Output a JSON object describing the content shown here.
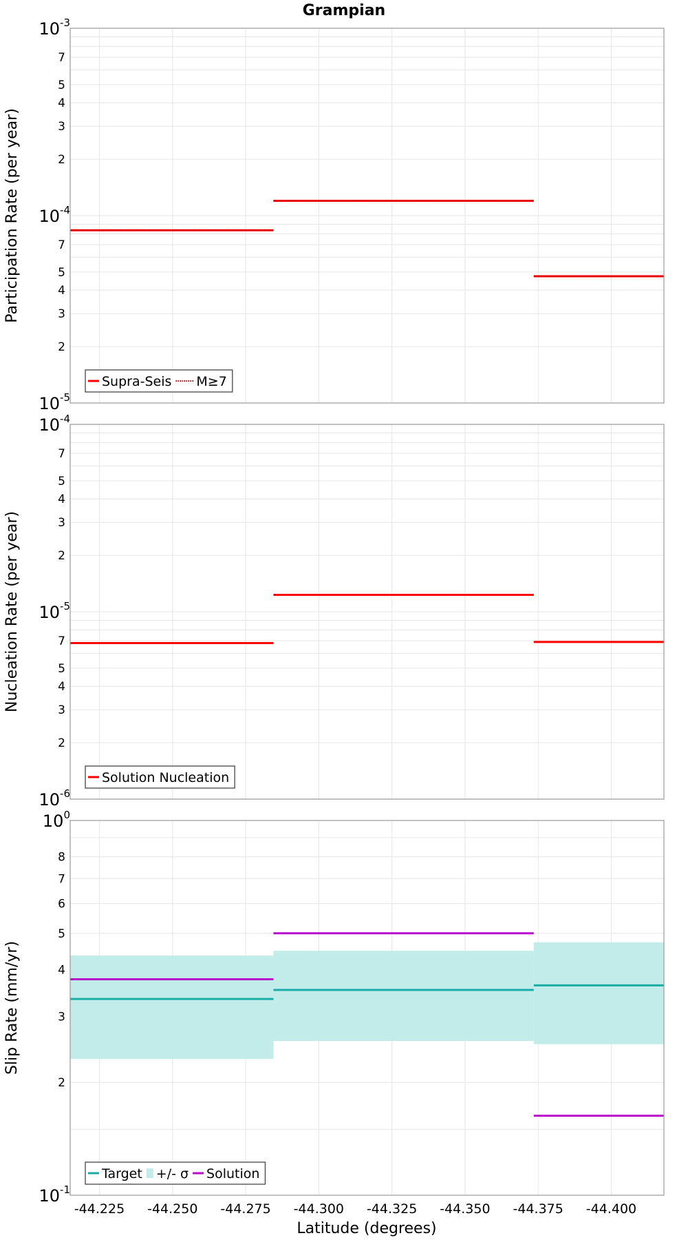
{
  "figure": {
    "title": "Grampian",
    "xlabel": "Latitude (degrees)"
  },
  "chart_data": [
    {
      "type": "line",
      "step": true,
      "ylabel": "Participation Rate (per year)",
      "yscale": "log",
      "ylim": [
        1e-05,
        0.001
      ],
      "xlim": [
        -44.215,
        -44.418
      ],
      "x_ticks": [
        -44.225,
        -44.25,
        -44.275,
        -44.3,
        -44.325,
        -44.35,
        -44.375,
        -44.4
      ],
      "major_ticks": [
        {
          "value": 0.001,
          "base": "10",
          "exp": "-3"
        },
        {
          "value": 0.0001,
          "base": "10",
          "exp": "-4"
        },
        {
          "value": 1e-05,
          "base": "10",
          "exp": "-5"
        }
      ],
      "minor_ticks": [
        {
          "value": 0.0007,
          "label": "7"
        },
        {
          "value": 0.0005,
          "label": "5"
        },
        {
          "value": 0.0004,
          "label": "4"
        },
        {
          "value": 0.0003,
          "label": "3"
        },
        {
          "value": 0.0002,
          "label": "2"
        },
        {
          "value": 7e-05,
          "label": "7"
        },
        {
          "value": 5e-05,
          "label": "5"
        },
        {
          "value": 4e-05,
          "label": "4"
        },
        {
          "value": 3e-05,
          "label": "3"
        },
        {
          "value": 2e-05,
          "label": "2"
        }
      ],
      "grid_values": [
        0.0009,
        0.0008,
        0.0006,
        9e-05,
        8e-05,
        6e-05
      ],
      "grid": true,
      "legend_position": "bottom-left",
      "series": [
        {
          "name": "Supra-Seis",
          "color": "#ff0000",
          "style": "solid",
          "segments": [
            {
              "x0": -44.215,
              "x1": -44.2845,
              "y": 8.35e-05
            },
            {
              "x0": -44.2845,
              "x1": -44.3735,
              "y": 0.00012
            },
            {
              "x0": -44.3735,
              "x1": -44.418,
              "y": 4.75e-05
            }
          ]
        },
        {
          "name": "M≥7",
          "color": "#ff0000",
          "style": "dotted",
          "segments": [
            {
              "x0": -44.215,
              "x1": -44.2845,
              "y": 8.35e-05
            },
            {
              "x0": -44.2845,
              "x1": -44.3735,
              "y": 0.00012
            },
            {
              "x0": -44.3735,
              "x1": -44.418,
              "y": 4.75e-05
            }
          ]
        }
      ]
    },
    {
      "type": "line",
      "step": true,
      "ylabel": "Nucleation Rate (per year)",
      "yscale": "log",
      "ylim": [
        1e-06,
        0.0001
      ],
      "xlim": [
        -44.215,
        -44.418
      ],
      "x_ticks": [
        -44.225,
        -44.25,
        -44.275,
        -44.3,
        -44.325,
        -44.35,
        -44.375,
        -44.4
      ],
      "major_ticks": [
        {
          "value": 0.0001,
          "base": "10",
          "exp": "-4"
        },
        {
          "value": 1e-05,
          "base": "10",
          "exp": "-5"
        },
        {
          "value": 1e-06,
          "base": "10",
          "exp": "-6"
        }
      ],
      "minor_ticks": [
        {
          "value": 7e-05,
          "label": "7"
        },
        {
          "value": 5e-05,
          "label": "5"
        },
        {
          "value": 4e-05,
          "label": "4"
        },
        {
          "value": 3e-05,
          "label": "3"
        },
        {
          "value": 2e-05,
          "label": "2"
        },
        {
          "value": 7e-06,
          "label": "7"
        },
        {
          "value": 5e-06,
          "label": "5"
        },
        {
          "value": 4e-06,
          "label": "4"
        },
        {
          "value": 3e-06,
          "label": "3"
        },
        {
          "value": 2e-06,
          "label": "2"
        }
      ],
      "grid_values": [
        9e-05,
        8e-05,
        6e-05,
        9e-06,
        8e-06,
        6e-06
      ],
      "grid": true,
      "legend_position": "bottom-left",
      "series": [
        {
          "name": "Solution Nucleation",
          "color": "#ff0000",
          "style": "solid",
          "segments": [
            {
              "x0": -44.215,
              "x1": -44.2845,
              "y": 6.8e-06
            },
            {
              "x0": -44.2845,
              "x1": -44.3735,
              "y": 1.23e-05
            },
            {
              "x0": -44.3735,
              "x1": -44.418,
              "y": 6.9e-06
            }
          ]
        }
      ]
    },
    {
      "type": "line",
      "step": true,
      "ylabel": "Slip Rate (mm/yr)",
      "yscale": "log",
      "ylim": [
        0.1,
        1
      ],
      "xlim": [
        -44.215,
        -44.418
      ],
      "x_ticks": [
        -44.225,
        -44.25,
        -44.275,
        -44.3,
        -44.325,
        -44.35,
        -44.375,
        -44.4
      ],
      "major_ticks": [
        {
          "value": 1,
          "base": "10",
          "exp": "0"
        },
        {
          "value": 0.1,
          "base": "10",
          "exp": "-1"
        }
      ],
      "minor_ticks": [
        {
          "value": 0.8,
          "label": "8"
        },
        {
          "value": 0.7,
          "label": "7"
        },
        {
          "value": 0.6,
          "label": "6"
        },
        {
          "value": 0.5,
          "label": "5"
        },
        {
          "value": 0.4,
          "label": "4"
        },
        {
          "value": 0.3,
          "label": "3"
        },
        {
          "value": 0.2,
          "label": "2"
        }
      ],
      "grid_values": [
        0.9,
        0.15
      ],
      "grid": true,
      "legend_position": "bottom-left",
      "series": [
        {
          "name": "+/- σ",
          "color": "#c2ece9",
          "style": "band",
          "segments": [
            {
              "x0": -44.215,
              "x1": -44.2845,
              "y_low": 0.231,
              "y_high": 0.436
            },
            {
              "x0": -44.2845,
              "x1": -44.3735,
              "y_low": 0.258,
              "y_high": 0.449
            },
            {
              "x0": -44.3735,
              "x1": -44.418,
              "y_low": 0.253,
              "y_high": 0.473
            }
          ]
        },
        {
          "name": "Target",
          "color": "#1aaca6",
          "style": "solid",
          "segments": [
            {
              "x0": -44.215,
              "x1": -44.2845,
              "y": 0.334
            },
            {
              "x0": -44.2845,
              "x1": -44.3735,
              "y": 0.353
            },
            {
              "x0": -44.3735,
              "x1": -44.418,
              "y": 0.363
            }
          ]
        },
        {
          "name": "Solution",
          "color": "#b80bcc",
          "style": "solid",
          "segments": [
            {
              "x0": -44.215,
              "x1": -44.2845,
              "y": 0.377
            },
            {
              "x0": -44.2845,
              "x1": -44.3735,
              "y": 0.5
            },
            {
              "x0": -44.3735,
              "x1": -44.418,
              "y": 0.163
            }
          ]
        }
      ],
      "legend_order": [
        "Target",
        "+/- σ",
        "Solution"
      ]
    }
  ]
}
